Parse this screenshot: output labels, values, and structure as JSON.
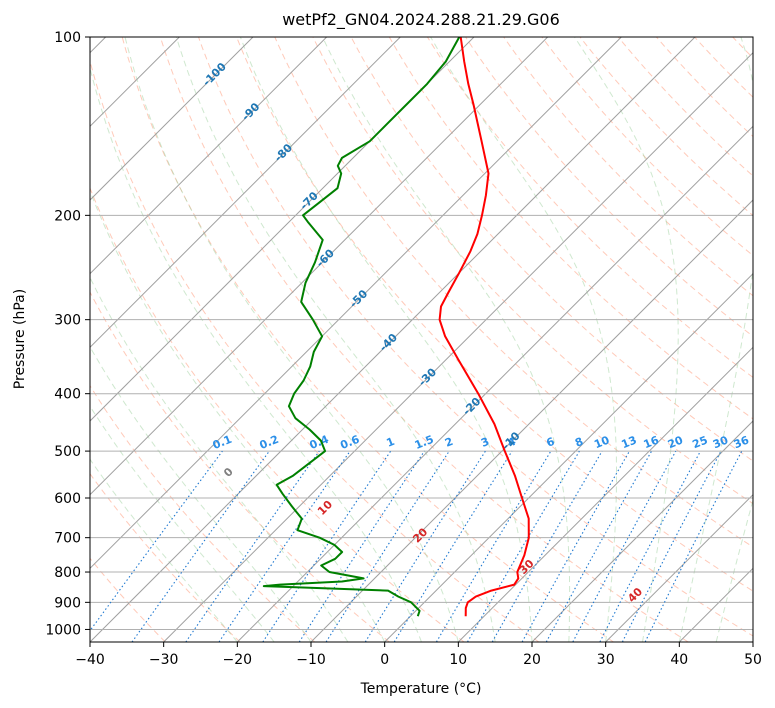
{
  "chart_data": {
    "type": "line",
    "title": "wetPf2_GN04.2024.288.21.29.G06",
    "xlabel": "Temperature (°C)",
    "ylabel": "Pressure (hPa)",
    "xlim": [
      -40,
      50
    ],
    "ylim": [
      1050,
      100
    ],
    "y_scale": "log",
    "skew": "skew-T",
    "grid": true,
    "x_ticks": [
      "−40",
      "−30",
      "−20",
      "−10",
      "0",
      "10",
      "20",
      "30",
      "40",
      "50"
    ],
    "x_tick_values": [
      -40,
      -30,
      -20,
      -10,
      0,
      10,
      20,
      30,
      40,
      50
    ],
    "y_ticks": [
      "100",
      "200",
      "300",
      "400",
      "500",
      "600",
      "700",
      "800",
      "900",
      "1000"
    ],
    "y_tick_values": [
      100,
      200,
      300,
      400,
      500,
      600,
      700,
      800,
      900,
      1000
    ],
    "colors": {
      "temperature": "#ff0000",
      "dewpoint": "#008000",
      "grid": "#b0b0b0",
      "isotherm": "#a0a0a0",
      "dry_adiabat": "#ff9f80",
      "moist_adiabat": "#9fd29f",
      "mixing_ratio": "#1e78d0",
      "dry_adiabat_label": "#d62728",
      "isotherm_label": "#1f77b4",
      "mixing_label": "#2b8fe8"
    },
    "series": [
      {
        "key": "temperature",
        "points": [
          [
            950,
            7.5
          ],
          [
            920,
            6.4
          ],
          [
            900,
            5.9
          ],
          [
            880,
            6.2
          ],
          [
            860,
            7.5
          ],
          [
            840,
            9.8
          ],
          [
            820,
            9.5
          ],
          [
            800,
            8.5
          ],
          [
            750,
            7.2
          ],
          [
            700,
            5.4
          ],
          [
            650,
            2.8
          ],
          [
            600,
            -0.9
          ],
          [
            550,
            -4.9
          ],
          [
            500,
            -9.6
          ],
          [
            450,
            -14.7
          ],
          [
            400,
            -21.0
          ],
          [
            350,
            -28.4
          ],
          [
            320,
            -33.3
          ],
          [
            300,
            -36.3
          ],
          [
            285,
            -37.9
          ],
          [
            270,
            -38.8
          ],
          [
            250,
            -40.0
          ],
          [
            230,
            -41.4
          ],
          [
            215,
            -42.8
          ],
          [
            200,
            -44.7
          ],
          [
            185,
            -46.9
          ],
          [
            170,
            -49.5
          ],
          [
            150,
            -54.8
          ],
          [
            130,
            -60.9
          ],
          [
            120,
            -64.4
          ],
          [
            110,
            -68.0
          ],
          [
            100,
            -71.8
          ]
        ]
      },
      {
        "key": "dewpoint",
        "points": [
          [
            950,
            1.0
          ],
          [
            930,
            0.5
          ],
          [
            900,
            -1.8
          ],
          [
            880,
            -4.3
          ],
          [
            860,
            -6.5
          ],
          [
            850,
            -18.0
          ],
          [
            845,
            -24.0
          ],
          [
            840,
            -22.0
          ],
          [
            830,
            -14.0
          ],
          [
            820,
            -11.5
          ],
          [
            800,
            -17.0
          ],
          [
            780,
            -19.0
          ],
          [
            760,
            -18.0
          ],
          [
            740,
            -18.0
          ],
          [
            720,
            -20.0
          ],
          [
            700,
            -23.0
          ],
          [
            680,
            -27.0
          ],
          [
            650,
            -28.0
          ],
          [
            620,
            -31.0
          ],
          [
            590,
            -34.0
          ],
          [
            570,
            -36.0
          ],
          [
            550,
            -35.0
          ],
          [
            500,
            -34.0
          ],
          [
            480,
            -36.0
          ],
          [
            460,
            -39.0
          ],
          [
            440,
            -42.5
          ],
          [
            420,
            -45.0
          ],
          [
            400,
            -46.0
          ],
          [
            380,
            -46.5
          ],
          [
            360,
            -47.5
          ],
          [
            340,
            -49.0
          ],
          [
            320,
            -50.0
          ],
          [
            300,
            -53.5
          ],
          [
            280,
            -57.5
          ],
          [
            260,
            -59.5
          ],
          [
            240,
            -61.0
          ],
          [
            220,
            -63.0
          ],
          [
            205,
            -67.5
          ],
          [
            200,
            -69.0
          ],
          [
            190,
            -68.5
          ],
          [
            180,
            -68.0
          ],
          [
            170,
            -69.5
          ],
          [
            165,
            -71.0
          ],
          [
            160,
            -71.5
          ],
          [
            150,
            -70.0
          ],
          [
            140,
            -70.0
          ],
          [
            130,
            -70.0
          ],
          [
            120,
            -70.0
          ],
          [
            110,
            -70.5
          ],
          [
            100,
            -72.0
          ]
        ]
      }
    ],
    "isotherm_labels": [
      "-100",
      "-90",
      "-80",
      "-70",
      "-60",
      "-50",
      "-40",
      "-30",
      "-20",
      "-10"
    ],
    "isotherm_label_values": [
      -100,
      -90,
      -80,
      -70,
      -60,
      -50,
      -40,
      -30,
      -20,
      -10
    ],
    "isotherm_label_pressures": [
      115,
      133,
      156,
      188,
      235,
      275,
      326,
      373,
      418,
      478
    ],
    "mixing_ratio_labels": [
      "0.1",
      "0.2",
      "0.4",
      "0.6",
      "1",
      "1.5",
      "2",
      "3",
      "4",
      "6",
      "8",
      "10",
      "13",
      "16",
      "20",
      "25",
      "30",
      "36"
    ],
    "mixing_ratio_values": [
      0.1,
      0.2,
      0.4,
      0.6,
      1,
      1.5,
      2,
      3,
      4,
      6,
      8,
      10,
      13,
      16,
      20,
      25,
      30,
      36
    ],
    "dry_adiabat_labels": [
      "0",
      "10",
      "20",
      "30",
      "40"
    ],
    "dry_adiabat_values": [
      0,
      10,
      20,
      30,
      40
    ],
    "dry_adiabat_label_pressures": [
      540,
      620,
      690,
      780,
      870
    ]
  }
}
